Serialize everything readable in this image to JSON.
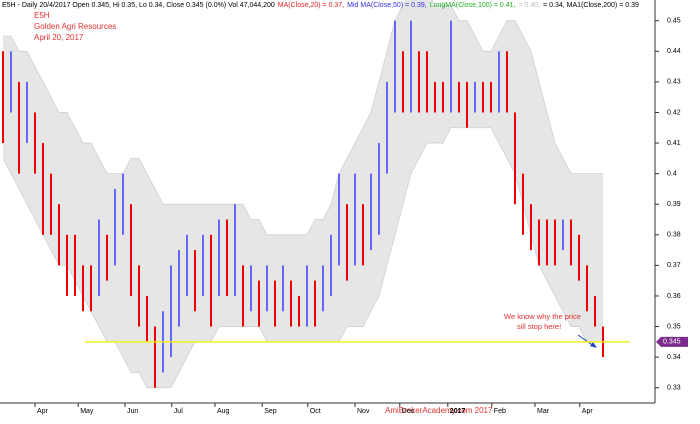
{
  "chart_data": {
    "type": "range_bar",
    "header": [
      {
        "text": "E5H - Daily 20/4/2017 Open 0.345, Hi 0.35, Lo 0.34, Close 0.345 (0.0%) Vol 47,044,200",
        "color": "#000000"
      },
      {
        "text": "MA(Close,20) = 0.37,",
        "color": "#e02020"
      },
      {
        "text": "Mid MA(Close,50) = 0.39,",
        "color": "#3030e0"
      },
      {
        "text": "LongMA(Close,100) = 0.41,",
        "color": "#20b020"
      },
      {
        "text": "= 0.40,",
        "color": "#bbbbbb"
      },
      {
        "text": "= 0.34, MA1(Close,200) = 0.39",
        "color": "#000000"
      }
    ],
    "title_lines": [
      "E5H",
      "Golden Agri Resources",
      "April 20, 2017"
    ],
    "annotation": [
      "We know why the price",
      "sill stop here!"
    ],
    "watermark": "AmiBrokerAcademy.com  2017",
    "ylim": [
      0.325,
      0.4535
    ],
    "yticks": [
      0.33,
      0.34,
      0.35,
      0.36,
      0.37,
      0.38,
      0.39,
      0.4,
      0.41,
      0.42,
      0.43,
      0.44,
      0.45
    ],
    "xlim": [
      -0.375,
      81.5
    ],
    "xticks": [
      {
        "value": 4,
        "label": "Apr"
      },
      {
        "value": 9.4,
        "label": "May"
      },
      {
        "value": 15.25,
        "label": "Jun"
      },
      {
        "value": 21.1,
        "label": "Jul"
      },
      {
        "value": 26.5,
        "label": "Aug"
      },
      {
        "value": 32.4,
        "label": "Sep"
      },
      {
        "value": 38.1,
        "label": "Oct"
      },
      {
        "value": 44,
        "label": "Nov"
      },
      {
        "value": 49.6,
        "label": "Dec"
      },
      {
        "value": 55.6,
        "label": "2017"
      },
      {
        "value": 61.1,
        "label": "Feb"
      },
      {
        "value": 66.5,
        "label": "Mar"
      },
      {
        "value": 72.1,
        "label": "Apr"
      }
    ],
    "up_color": "#6666ff",
    "down_color": "#ee0000",
    "band_color": "#e6e6e6",
    "high": [
      0.44,
      0.44,
      0.43,
      0.43,
      0.42,
      0.41,
      0.4,
      0.39,
      0.38,
      0.38,
      0.37,
      0.37,
      0.385,
      0.38,
      0.395,
      0.4,
      0.39,
      0.37,
      0.36,
      0.35,
      0.355,
      0.37,
      0.375,
      0.38,
      0.375,
      0.38,
      0.38,
      0.385,
      0.385,
      0.39,
      0.37,
      0.37,
      0.365,
      0.37,
      0.365,
      0.37,
      0.365,
      0.36,
      0.37,
      0.365,
      0.37,
      0.38,
      0.4,
      0.39,
      0.4,
      0.39,
      0.4,
      0.41,
      0.43,
      0.45,
      0.44,
      0.45,
      0.44,
      0.44,
      0.43,
      0.43,
      0.45,
      0.43,
      0.43,
      0.43,
      0.43,
      0.43,
      0.44,
      0.44,
      0.42,
      0.4,
      0.39,
      0.385,
      0.385,
      0.385,
      0.385,
      0.385,
      0.38,
      0.37,
      0.36,
      0.35
    ],
    "low": [
      0.41,
      0.42,
      0.4,
      0.41,
      0.4,
      0.38,
      0.38,
      0.37,
      0.36,
      0.36,
      0.355,
      0.355,
      0.36,
      0.365,
      0.37,
      0.38,
      0.36,
      0.35,
      0.345,
      0.33,
      0.335,
      0.34,
      0.35,
      0.36,
      0.355,
      0.36,
      0.35,
      0.36,
      0.36,
      0.36,
      0.35,
      0.355,
      0.35,
      0.355,
      0.35,
      0.355,
      0.35,
      0.35,
      0.35,
      0.35,
      0.355,
      0.36,
      0.37,
      0.365,
      0.37,
      0.37,
      0.375,
      0.38,
      0.4,
      0.42,
      0.42,
      0.42,
      0.42,
      0.42,
      0.42,
      0.42,
      0.42,
      0.42,
      0.415,
      0.42,
      0.42,
      0.42,
      0.42,
      0.42,
      0.39,
      0.38,
      0.375,
      0.37,
      0.37,
      0.37,
      0.375,
      0.37,
      0.365,
      0.355,
      0.35,
      0.34
    ],
    "band_upper": [
      0.445,
      0.445,
      0.44,
      0.44,
      0.435,
      0.43,
      0.425,
      0.42,
      0.42,
      0.415,
      0.41,
      0.41,
      0.405,
      0.4,
      0.4,
      0.4,
      0.405,
      0.405,
      0.4,
      0.395,
      0.39,
      0.39,
      0.39,
      0.39,
      0.39,
      0.39,
      0.39,
      0.39,
      0.39,
      0.39,
      0.39,
      0.385,
      0.385,
      0.38,
      0.38,
      0.38,
      0.38,
      0.38,
      0.38,
      0.385,
      0.385,
      0.39,
      0.4,
      0.405,
      0.41,
      0.415,
      0.42,
      0.43,
      0.44,
      0.45,
      0.455,
      0.46,
      0.46,
      0.46,
      0.455,
      0.455,
      0.455,
      0.45,
      0.45,
      0.445,
      0.44,
      0.44,
      0.445,
      0.45,
      0.45,
      0.445,
      0.44,
      0.43,
      0.42,
      0.41,
      0.405,
      0.4,
      0.4,
      0.4,
      0.4,
      0.4
    ],
    "band_lower": [
      0.405,
      0.4,
      0.395,
      0.39,
      0.385,
      0.38,
      0.375,
      0.37,
      0.37,
      0.365,
      0.36,
      0.355,
      0.35,
      0.345,
      0.345,
      0.34,
      0.335,
      0.335,
      0.33,
      0.33,
      0.33,
      0.33,
      0.335,
      0.34,
      0.345,
      0.345,
      0.345,
      0.35,
      0.35,
      0.35,
      0.35,
      0.35,
      0.35,
      0.345,
      0.345,
      0.345,
      0.345,
      0.345,
      0.345,
      0.345,
      0.345,
      0.345,
      0.345,
      0.35,
      0.35,
      0.35,
      0.355,
      0.36,
      0.37,
      0.38,
      0.39,
      0.4,
      0.405,
      0.41,
      0.41,
      0.41,
      0.415,
      0.415,
      0.415,
      0.415,
      0.415,
      0.415,
      0.41,
      0.405,
      0.4,
      0.39,
      0.38,
      0.37,
      0.365,
      0.36,
      0.355,
      0.35,
      0.35,
      0.345,
      0.345,
      0.345
    ],
    "support": {
      "value": 0.345,
      "color": "#f0f020",
      "tag_color": "#7b2c8c"
    }
  }
}
